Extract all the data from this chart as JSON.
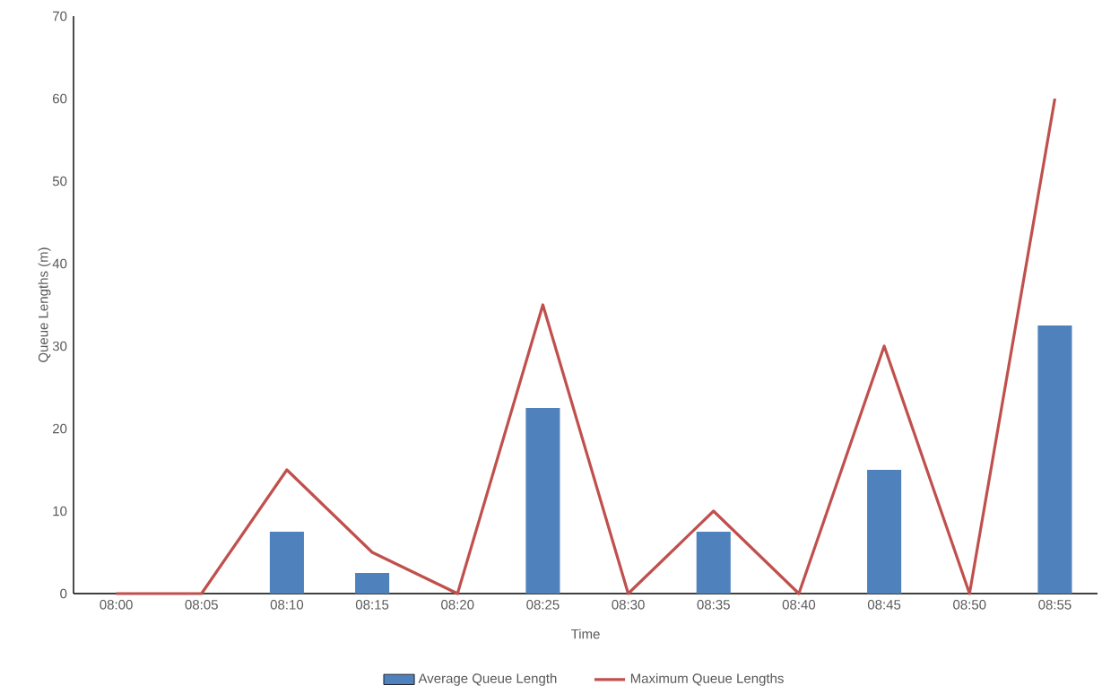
{
  "chart_data": {
    "type": "bar",
    "xlabel": "Time",
    "ylabel": "Queue Lengths (m)",
    "categories": [
      "08:00",
      "08:05",
      "08:10",
      "08:15",
      "08:20",
      "08:25",
      "08:30",
      "08:35",
      "08:40",
      "08:45",
      "08:50",
      "08:55"
    ],
    "series": [
      {
        "name": "Average Queue Length",
        "color": "#4f81bd",
        "values": [
          0,
          0,
          7.5,
          2.5,
          0,
          22.5,
          0,
          7.5,
          0,
          15,
          0,
          32.5
        ]
      },
      {
        "name": "Maximum Queue Lengths",
        "type": "line",
        "color": "#c0504d",
        "values": [
          0,
          0,
          15,
          5,
          0,
          35,
          0,
          10,
          0,
          30,
          0,
          60
        ]
      }
    ],
    "ylim": [
      0,
      70
    ],
    "yticks": [
      0,
      10,
      20,
      30,
      40,
      50,
      60,
      70
    ],
    "grid": false,
    "legend": "bottom"
  }
}
